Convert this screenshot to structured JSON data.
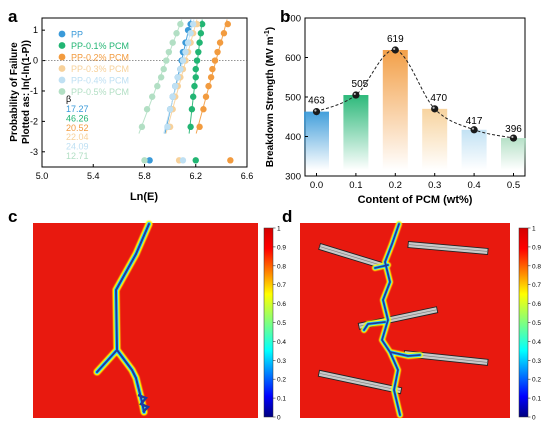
{
  "panels": {
    "a": {
      "letter": "a"
    },
    "b": {
      "letter": "b"
    },
    "c": {
      "letter": "c"
    },
    "d": {
      "letter": "d"
    }
  },
  "chart_data": [
    {
      "type": "scatter",
      "panel": "a",
      "xlabel": "Ln(E)",
      "ylabel_lines": [
        "Probability of Failure",
        "Plotted as: ln(-ln(1-P))"
      ],
      "xlim": [
        5.0,
        6.6
      ],
      "ylim": [
        -3.5,
        1.4
      ],
      "x_ticks": [
        "5.0",
        "5.4",
        "5.8",
        "6.2",
        "6.6"
      ],
      "y_ticks": [
        "-3",
        "-2",
        "-1",
        "0",
        "1"
      ],
      "reference_line_y": 0,
      "beta_label": "β",
      "series": [
        {
          "name": "PP",
          "color": "#3a9ad9",
          "beta": "17.27",
          "points": [
            [
              5.84,
              -3.28
            ],
            [
              5.98,
              -2.18
            ],
            [
              6.0,
              -1.6
            ],
            [
              6.02,
              -1.19
            ],
            [
              6.04,
              -0.84
            ],
            [
              6.06,
              -0.55
            ],
            [
              6.08,
              -0.28
            ],
            [
              6.09,
              0.0
            ],
            [
              6.1,
              0.28
            ],
            [
              6.12,
              0.59
            ],
            [
              6.14,
              1.0
            ],
            [
              6.16,
              1.2
            ]
          ]
        },
        {
          "name": "PP-0.1% PCM",
          "color": "#22b573",
          "beta": "46.26",
          "points": [
            [
              6.2,
              -3.28
            ],
            [
              6.16,
              -2.18
            ],
            [
              6.17,
              -1.6
            ],
            [
              6.18,
              -1.19
            ],
            [
              6.19,
              -0.84
            ],
            [
              6.2,
              -0.55
            ],
            [
              6.2,
              -0.28
            ],
            [
              6.21,
              0.0
            ],
            [
              6.22,
              0.28
            ],
            [
              6.23,
              0.59
            ],
            [
              6.24,
              0.9
            ],
            [
              6.25,
              1.2
            ]
          ]
        },
        {
          "name": "PP-0.2% PCM",
          "color": "#f29b3f",
          "beta": "20.52",
          "points": [
            [
              6.47,
              -3.28
            ],
            [
              6.23,
              -2.18
            ],
            [
              6.26,
              -1.6
            ],
            [
              6.28,
              -1.19
            ],
            [
              6.3,
              -0.84
            ],
            [
              6.32,
              -0.55
            ],
            [
              6.33,
              -0.28
            ],
            [
              6.35,
              0.0
            ],
            [
              6.37,
              0.28
            ],
            [
              6.39,
              0.59
            ],
            [
              6.42,
              0.9
            ],
            [
              6.45,
              1.2
            ]
          ]
        },
        {
          "name": "PP-0.3% PCM",
          "color": "#f7d19a",
          "beta": "22.04",
          "points": [
            [
              6.07,
              -3.28
            ],
            [
              6.0,
              -2.18
            ],
            [
              6.02,
              -1.6
            ],
            [
              6.04,
              -1.19
            ],
            [
              6.06,
              -0.84
            ],
            [
              6.08,
              -0.55
            ],
            [
              6.1,
              -0.28
            ],
            [
              6.12,
              0.0
            ],
            [
              6.14,
              0.28
            ],
            [
              6.16,
              0.59
            ],
            [
              6.18,
              0.9
            ],
            [
              6.21,
              1.2
            ]
          ]
        },
        {
          "name": "PP-0.4% PCM",
          "color": "#bfe0f3",
          "beta": "24.09",
          "points": [
            [
              6.1,
              -3.28
            ],
            [
              5.98,
              -2.18
            ],
            [
              6.0,
              -1.6
            ],
            [
              6.02,
              -1.19
            ],
            [
              6.04,
              -0.84
            ],
            [
              6.06,
              -0.55
            ],
            [
              6.08,
              -0.28
            ],
            [
              6.1,
              0.0
            ],
            [
              6.12,
              0.28
            ],
            [
              6.14,
              0.59
            ],
            [
              6.16,
              0.9
            ],
            [
              6.18,
              1.2
            ]
          ]
        },
        {
          "name": "PP-0.5% PCM",
          "color": "#b2dfc4",
          "beta": "12.71",
          "points": [
            [
              5.8,
              -3.28
            ],
            [
              5.78,
              -2.18
            ],
            [
              5.82,
              -1.6
            ],
            [
              5.86,
              -1.19
            ],
            [
              5.9,
              -0.84
            ],
            [
              5.93,
              -0.55
            ],
            [
              5.95,
              -0.28
            ],
            [
              5.97,
              0.0
            ],
            [
              5.99,
              0.28
            ],
            [
              6.02,
              0.59
            ],
            [
              6.05,
              0.9
            ],
            [
              6.08,
              1.2
            ]
          ]
        }
      ]
    },
    {
      "type": "bar",
      "panel": "b",
      "xlabel": "Content of PCM (wt%)",
      "ylabel": "Breakdown Strength (MV m",
      "ylabel_sup": "-1",
      "ylabel_close": ")",
      "categories": [
        "0.0",
        "0.1",
        "0.2",
        "0.3",
        "0.4",
        "0.5"
      ],
      "values": [
        463,
        505,
        619,
        470,
        417,
        396
      ],
      "value_labels": [
        "463",
        "505",
        "619",
        "470",
        "417",
        "396"
      ],
      "ylim": [
        300,
        700
      ],
      "y_ticks": [
        "300",
        "400",
        "500",
        "600",
        "700"
      ],
      "bar_colors": [
        "#3a9ad9",
        "#22b573",
        "#f29b3f",
        "#f7d19a",
        "#bfe0f3",
        "#b2dfc4"
      ]
    },
    {
      "type": "heatmap",
      "panel": "c",
      "colorbar_ticks": [
        "0",
        "0.1",
        "0.2",
        "0.3",
        "0.4",
        "0.5",
        "0.6",
        "0.7",
        "0.8",
        "0.9",
        "1"
      ]
    },
    {
      "type": "heatmap",
      "panel": "d",
      "colorbar_ticks": [
        "0",
        "0.1",
        "0.2",
        "0.3",
        "0.4",
        "0.5",
        "0.6",
        "0.7",
        "0.8",
        "0.9",
        "1"
      ]
    }
  ],
  "colors": {
    "field_red": "#e8190f",
    "channel_blue": "#1f3a9e",
    "jet": [
      "#00007f",
      "#0000ff",
      "#007fff",
      "#00ffff",
      "#7fff7f",
      "#ffff00",
      "#ff7f00",
      "#ff0000",
      "#7f0000"
    ]
  }
}
